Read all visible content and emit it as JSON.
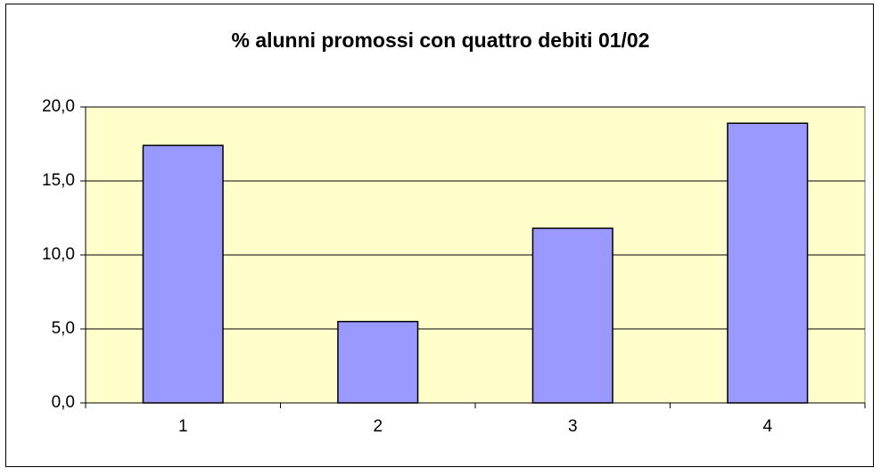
{
  "chart_data": {
    "type": "bar",
    "title": "% alunni promossi con quattro debiti 01/02",
    "categories": [
      "1",
      "2",
      "3",
      "4"
    ],
    "values": [
      17.4,
      5.5,
      11.8,
      18.9
    ],
    "color": "#9999ff",
    "plot_background": "#ffffcc",
    "ylim": [
      0,
      20
    ],
    "yticks": [
      {
        "value": 0,
        "label": "0,0"
      },
      {
        "value": 5,
        "label": "5,0"
      },
      {
        "value": 10,
        "label": "10,0"
      },
      {
        "value": 15,
        "label": "15,0"
      },
      {
        "value": 20,
        "label": "20,0"
      }
    ],
    "grid": true
  }
}
